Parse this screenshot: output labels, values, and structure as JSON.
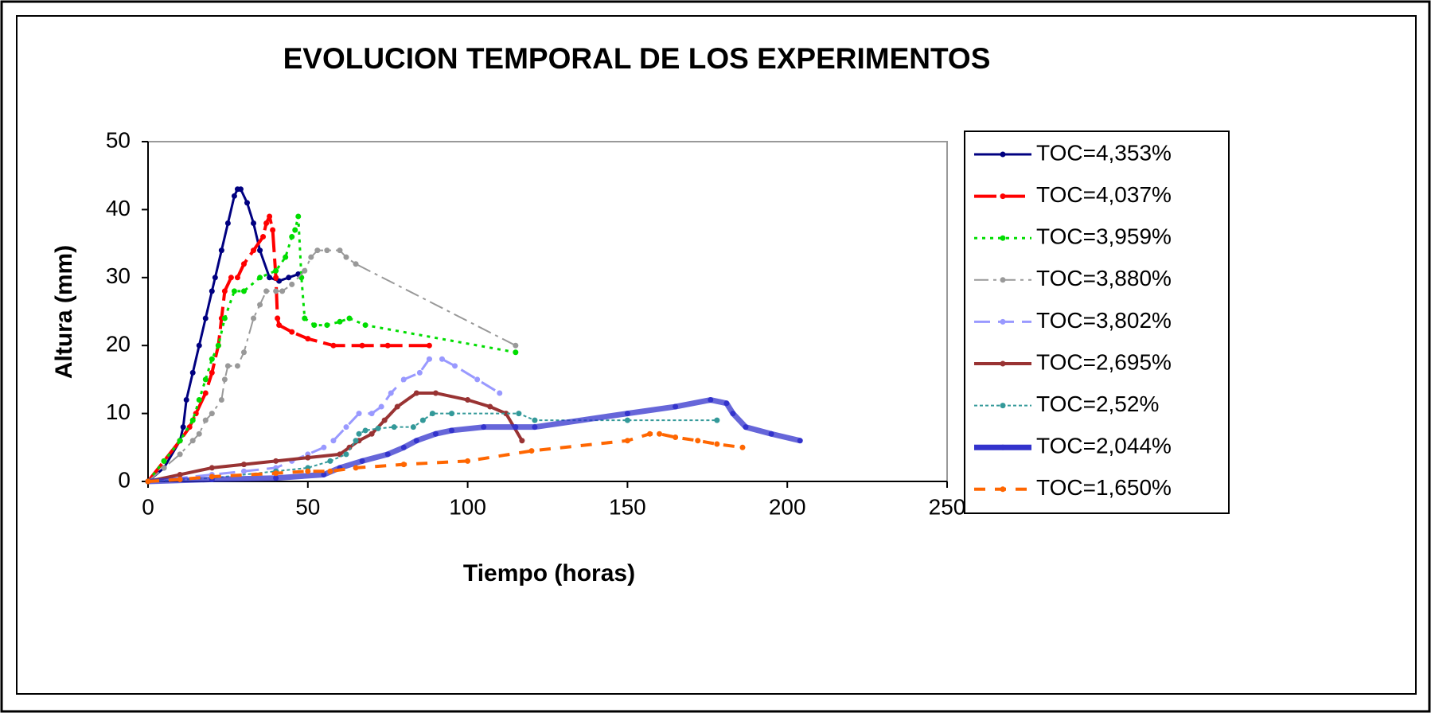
{
  "chart_data": {
    "type": "line",
    "title": "EVOLUCION TEMPORAL DE LOS EXPERIMENTOS",
    "x_label": "Tiempo (horas)",
    "y_label": "Altura (mm)",
    "xlim": [
      0,
      250
    ],
    "xticks": [
      0,
      50,
      100,
      150,
      200,
      250
    ],
    "ylim": [
      0,
      50
    ],
    "yticks": [
      0,
      10,
      20,
      30,
      40,
      50
    ],
    "grid": false,
    "legend": "right",
    "series": [
      {
        "name": "TOC=4,353%",
        "color": "#000080",
        "x": [
          0,
          5,
          10,
          11,
          12,
          14,
          16,
          18,
          20,
          21,
          23,
          25,
          27,
          28,
          29,
          31,
          33,
          35,
          38,
          41,
          44,
          47
        ],
        "values": [
          0,
          2,
          6,
          8,
          12,
          16,
          20,
          24,
          28,
          30,
          34,
          38,
          42,
          43,
          43,
          41,
          38,
          34,
          30,
          29.5,
          30,
          30.5
        ]
      },
      {
        "name": "TOC=4,037%",
        "color": "#ff0000",
        "x": [
          0,
          5,
          10,
          13,
          15,
          18,
          20,
          22,
          23,
          24,
          26,
          28,
          30,
          33,
          36,
          37,
          38,
          39,
          40,
          40.5,
          41,
          45,
          50,
          58,
          67,
          75,
          88
        ],
        "values": [
          0,
          3,
          6,
          8,
          10,
          13,
          16,
          20,
          24,
          28,
          30,
          30,
          32,
          34,
          36,
          38,
          39,
          37,
          30,
          24,
          23,
          22,
          21,
          20,
          20,
          20,
          20
        ]
      },
      {
        "name": "TOC=3,959%",
        "color": "#00dd00",
        "x": [
          0,
          5,
          10,
          14,
          16,
          18,
          20,
          22,
          24,
          27,
          30,
          35,
          40,
          43,
          45,
          46,
          47,
          48,
          49,
          52,
          56,
          60,
          63,
          68,
          115
        ],
        "values": [
          0,
          3,
          6,
          9,
          12,
          15,
          18,
          20,
          24,
          28,
          28,
          30,
          31,
          33,
          36,
          37,
          39,
          30,
          24,
          23,
          23,
          23.5,
          24,
          23,
          19
        ]
      },
      {
        "name": "TOC=3,880%",
        "color": "#999999",
        "x": [
          0,
          5,
          10,
          14,
          16,
          18,
          20,
          23,
          24,
          25,
          28,
          30,
          33,
          35,
          37,
          40,
          42,
          45,
          49,
          51,
          53,
          56,
          60,
          62,
          65,
          115
        ],
        "values": [
          0,
          2,
          4,
          6,
          7,
          9,
          10,
          12,
          15,
          17,
          17,
          19,
          24,
          26,
          28,
          28,
          28,
          29,
          31,
          33,
          34,
          34,
          34,
          33,
          32,
          20
        ]
      },
      {
        "name": "TOC=3,802%",
        "color": "#9999ff",
        "x": [
          0,
          10,
          20,
          30,
          40,
          45,
          50,
          55,
          58,
          62,
          66,
          70,
          73,
          76,
          80,
          85,
          88,
          92,
          96,
          103,
          110
        ],
        "values": [
          0,
          0.5,
          1,
          1.5,
          2,
          3,
          4,
          5,
          6,
          8,
          10,
          10,
          11,
          13,
          15,
          16,
          18,
          18,
          17,
          15,
          13
        ]
      },
      {
        "name": "TOC=2,695%",
        "color": "#993333",
        "x": [
          0,
          10,
          20,
          30,
          40,
          50,
          60,
          63,
          66,
          70,
          74,
          78,
          84,
          90,
          100,
          107,
          112,
          117
        ],
        "values": [
          0,
          1,
          2,
          2.5,
          3,
          3.5,
          4,
          5,
          6,
          7,
          9,
          11,
          13,
          13,
          12,
          11,
          10,
          6
        ]
      },
      {
        "name": "TOC=2,52%",
        "color": "#339999",
        "x": [
          0,
          20,
          40,
          50,
          57,
          62,
          65,
          66,
          68,
          72,
          77,
          83,
          86,
          89,
          95,
          116,
          121,
          150,
          178
        ],
        "values": [
          0,
          0.5,
          1.5,
          2,
          3,
          4,
          6,
          7,
          7.5,
          7.8,
          8,
          8,
          9,
          10,
          10,
          10,
          9,
          9,
          9
        ]
      },
      {
        "name": "TOC=2,044%",
        "color": "#3333cc",
        "x": [
          0,
          20,
          40,
          55,
          60,
          67,
          75,
          80,
          84,
          90,
          95,
          105,
          115,
          121,
          150,
          165,
          176,
          181,
          183,
          187,
          195,
          204
        ],
        "values": [
          0,
          0.3,
          0.5,
          1,
          2,
          3,
          4,
          5,
          6,
          7,
          7.5,
          8,
          8,
          8,
          10,
          11,
          12,
          11.5,
          10,
          8,
          7,
          6
        ]
      },
      {
        "name": "TOC=1,650%",
        "color": "#ff6600",
        "x": [
          0,
          10,
          20,
          40,
          50,
          57,
          65,
          80,
          100,
          120,
          150,
          157,
          160,
          165,
          172,
          178,
          186
        ],
        "values": [
          0,
          0.3,
          0.7,
          1.2,
          1.5,
          1.5,
          2,
          2.5,
          3,
          4.5,
          6,
          7,
          7,
          6.5,
          6,
          5.5,
          5
        ]
      }
    ]
  }
}
